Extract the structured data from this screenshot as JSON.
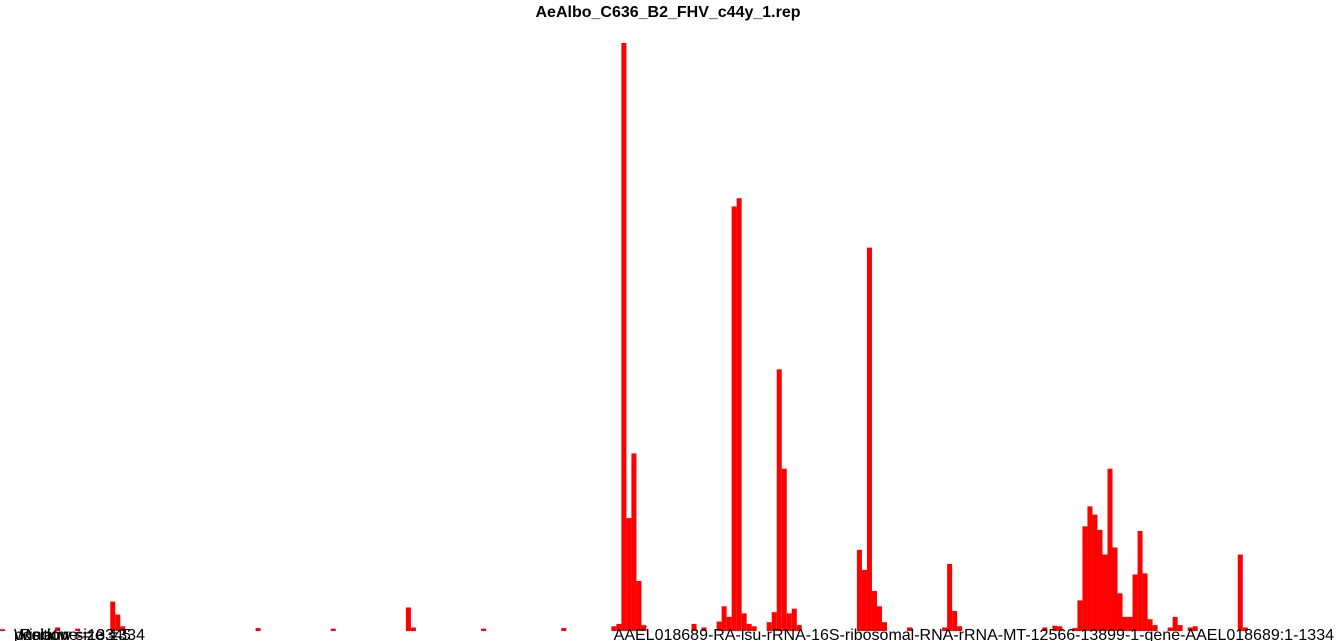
{
  "chart_data": {
    "type": "bar",
    "title": "AeAlbo_C636_B2_FHV_c44y_1.rep",
    "footer_labels": [
      "Window size = 5",
      "position = 1334",
      "Relative = 0.1334",
      "AAEL018689-RA-lsu-rRNA-16S-ribosomal-RNA-rRNA-MT-12566-13899-1-gene-AAEL018689:1-1334"
    ],
    "series_color": "#ff0000",
    "bin_width": 5,
    "x_range": [
      0,
      1334
    ],
    "ylim": [
      0,
      100
    ],
    "bars": [
      {
        "x": 0,
        "y": 0.3
      },
      {
        "x": 55,
        "y": 0.6
      },
      {
        "x": 75,
        "y": 0.4
      },
      {
        "x": 110,
        "y": 5.0
      },
      {
        "x": 115,
        "y": 2.8
      },
      {
        "x": 120,
        "y": 0.8
      },
      {
        "x": 255,
        "y": 0.5
      },
      {
        "x": 330,
        "y": 0.4
      },
      {
        "x": 405,
        "y": 4.0
      },
      {
        "x": 410,
        "y": 0.6
      },
      {
        "x": 480,
        "y": 0.4
      },
      {
        "x": 560,
        "y": 0.5
      },
      {
        "x": 610,
        "y": 0.8
      },
      {
        "x": 615,
        "y": 1.2
      },
      {
        "x": 620,
        "y": 100.0
      },
      {
        "x": 625,
        "y": 19.2
      },
      {
        "x": 630,
        "y": 30.2
      },
      {
        "x": 635,
        "y": 8.5
      },
      {
        "x": 640,
        "y": 1.0
      },
      {
        "x": 690,
        "y": 1.2
      },
      {
        "x": 700,
        "y": 0.6
      },
      {
        "x": 715,
        "y": 1.6
      },
      {
        "x": 720,
        "y": 4.2
      },
      {
        "x": 725,
        "y": 2.4
      },
      {
        "x": 730,
        "y": 72.2
      },
      {
        "x": 735,
        "y": 73.6
      },
      {
        "x": 740,
        "y": 3.0
      },
      {
        "x": 745,
        "y": 1.2
      },
      {
        "x": 750,
        "y": 0.8
      },
      {
        "x": 765,
        "y": 1.5
      },
      {
        "x": 770,
        "y": 3.2
      },
      {
        "x": 775,
        "y": 44.5
      },
      {
        "x": 780,
        "y": 27.6
      },
      {
        "x": 785,
        "y": 3.0
      },
      {
        "x": 790,
        "y": 3.8
      },
      {
        "x": 795,
        "y": 1.0
      },
      {
        "x": 855,
        "y": 13.8
      },
      {
        "x": 860,
        "y": 10.4
      },
      {
        "x": 865,
        "y": 65.2
      },
      {
        "x": 870,
        "y": 6.8
      },
      {
        "x": 875,
        "y": 4.2
      },
      {
        "x": 880,
        "y": 1.5
      },
      {
        "x": 905,
        "y": 0.6
      },
      {
        "x": 940,
        "y": 0.6
      },
      {
        "x": 945,
        "y": 11.4
      },
      {
        "x": 950,
        "y": 3.4
      },
      {
        "x": 955,
        "y": 0.8
      },
      {
        "x": 1040,
        "y": 0.6
      },
      {
        "x": 1050,
        "y": 0.9
      },
      {
        "x": 1055,
        "y": 0.8
      },
      {
        "x": 1070,
        "y": 0.5
      },
      {
        "x": 1075,
        "y": 5.2
      },
      {
        "x": 1080,
        "y": 17.8
      },
      {
        "x": 1085,
        "y": 21.2
      },
      {
        "x": 1090,
        "y": 19.8
      },
      {
        "x": 1095,
        "y": 17.2
      },
      {
        "x": 1100,
        "y": 13.0
      },
      {
        "x": 1105,
        "y": 27.6
      },
      {
        "x": 1110,
        "y": 14.2
      },
      {
        "x": 1115,
        "y": 6.4
      },
      {
        "x": 1120,
        "y": 2.4
      },
      {
        "x": 1125,
        "y": 2.4
      },
      {
        "x": 1130,
        "y": 9.6
      },
      {
        "x": 1135,
        "y": 17.0
      },
      {
        "x": 1140,
        "y": 9.8
      },
      {
        "x": 1145,
        "y": 2.0
      },
      {
        "x": 1150,
        "y": 1.0
      },
      {
        "x": 1165,
        "y": 0.6
      },
      {
        "x": 1170,
        "y": 2.4
      },
      {
        "x": 1175,
        "y": 1.0
      },
      {
        "x": 1185,
        "y": 0.6
      },
      {
        "x": 1190,
        "y": 0.8
      },
      {
        "x": 1235,
        "y": 13.0
      },
      {
        "x": 1240,
        "y": 0.6
      }
    ]
  }
}
